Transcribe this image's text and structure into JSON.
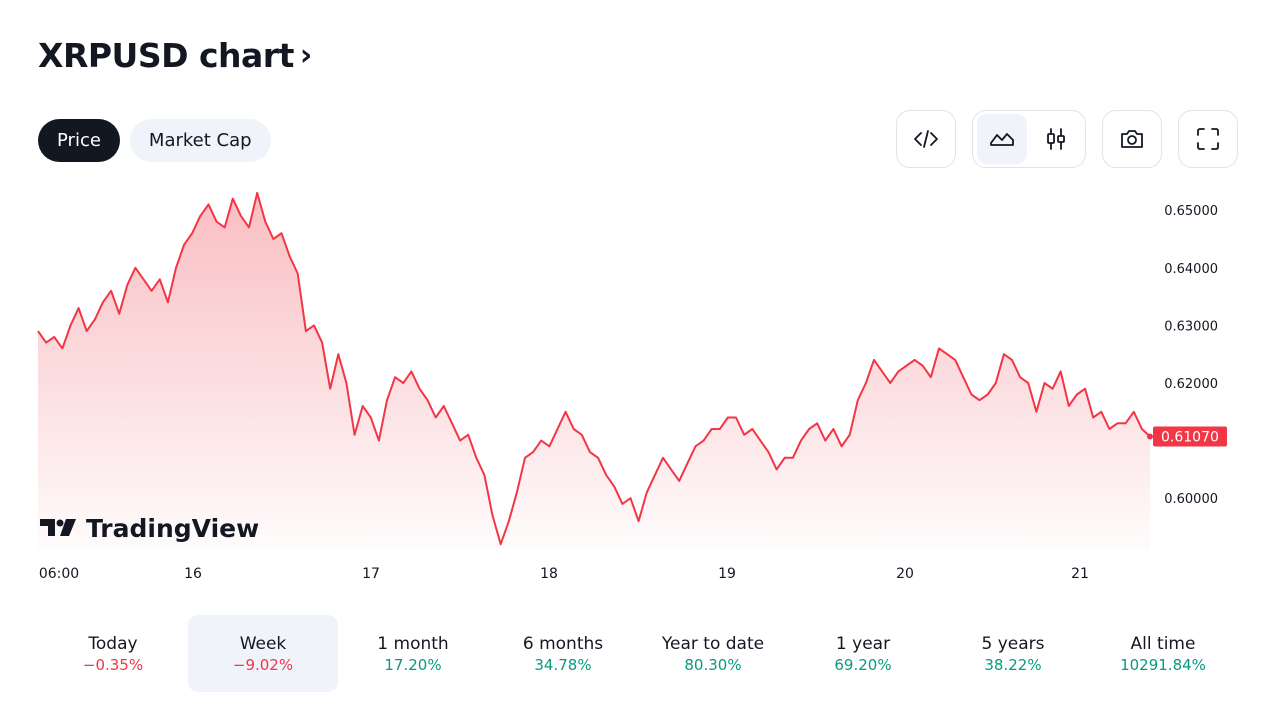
{
  "header": {
    "title": "XRPUSD chart",
    "chevron": "›"
  },
  "tabs": [
    {
      "label": "Price",
      "active": true
    },
    {
      "label": "Market Cap",
      "active": false
    }
  ],
  "toolbar": {
    "embed_icon": "code-icon",
    "line_icon": "area-chart-icon",
    "candle_icon": "candlestick-icon",
    "camera_icon": "camera-icon",
    "fullscreen_icon": "fullscreen-icon"
  },
  "colors": {
    "line": "#f23645",
    "fill_top": "#f7a8ae",
    "negative": "#f23645",
    "positive": "#089981",
    "dark": "#131722"
  },
  "watermark": "TradingView",
  "chart_data": {
    "type": "area",
    "symbol": "XRPUSD",
    "x_ticks": [
      "06:00",
      "16",
      "17",
      "18",
      "19",
      "20",
      "21"
    ],
    "y_ticks": [
      "0.60000",
      "0.61000",
      "0.62000",
      "0.63000",
      "0.64000",
      "0.65000"
    ],
    "ylim": [
      0.591,
      0.6535
    ],
    "last_price": "0.61070",
    "series": [
      {
        "values": [
          0.629,
          0.627,
          0.628,
          0.626,
          0.63,
          0.633,
          0.629,
          0.631,
          0.634,
          0.636,
          0.632,
          0.637,
          0.64,
          0.638,
          0.636,
          0.638,
          0.634,
          0.64,
          0.644,
          0.646,
          0.649,
          0.651,
          0.648,
          0.647,
          0.652,
          0.649,
          0.647,
          0.653,
          0.648,
          0.645,
          0.646,
          0.642,
          0.639,
          0.629,
          0.63,
          0.627,
          0.619,
          0.625,
          0.62,
          0.611,
          0.616,
          0.614,
          0.61,
          0.617,
          0.621,
          0.62,
          0.622,
          0.619,
          0.617,
          0.614,
          0.616,
          0.613,
          0.61,
          0.611,
          0.607,
          0.604,
          0.597,
          0.592,
          0.596,
          0.601,
          0.607,
          0.608,
          0.61,
          0.609,
          0.612,
          0.615,
          0.612,
          0.611,
          0.608,
          0.607,
          0.604,
          0.602,
          0.599,
          0.6,
          0.596,
          0.601,
          0.604,
          0.607,
          0.605,
          0.603,
          0.606,
          0.609,
          0.61,
          0.612,
          0.612,
          0.614,
          0.614,
          0.611,
          0.612,
          0.61,
          0.608,
          0.605,
          0.607,
          0.607,
          0.61,
          0.612,
          0.613,
          0.61,
          0.612,
          0.609,
          0.611,
          0.617,
          0.62,
          0.624,
          0.622,
          0.62,
          0.622,
          0.623,
          0.624,
          0.623,
          0.621,
          0.626,
          0.625,
          0.624,
          0.621,
          0.618,
          0.617,
          0.618,
          0.62,
          0.625,
          0.624,
          0.621,
          0.62,
          0.615,
          0.62,
          0.619,
          0.622,
          0.616,
          0.618,
          0.619,
          0.614,
          0.615,
          0.612,
          0.613,
          0.613,
          0.615,
          0.612,
          0.6107
        ]
      }
    ]
  },
  "periods": [
    {
      "label": "Today",
      "change": "−0.35%",
      "trend": "neg",
      "active": false
    },
    {
      "label": "Week",
      "change": "−9.02%",
      "trend": "neg",
      "active": true
    },
    {
      "label": "1 month",
      "change": "17.20%",
      "trend": "pos",
      "active": false
    },
    {
      "label": "6 months",
      "change": "34.78%",
      "trend": "pos",
      "active": false
    },
    {
      "label": "Year to date",
      "change": "80.30%",
      "trend": "pos",
      "active": false
    },
    {
      "label": "1 year",
      "change": "69.20%",
      "trend": "pos",
      "active": false
    },
    {
      "label": "5 years",
      "change": "38.22%",
      "trend": "pos",
      "active": false
    },
    {
      "label": "All time",
      "change": "10291.84%",
      "trend": "pos",
      "active": false
    }
  ]
}
